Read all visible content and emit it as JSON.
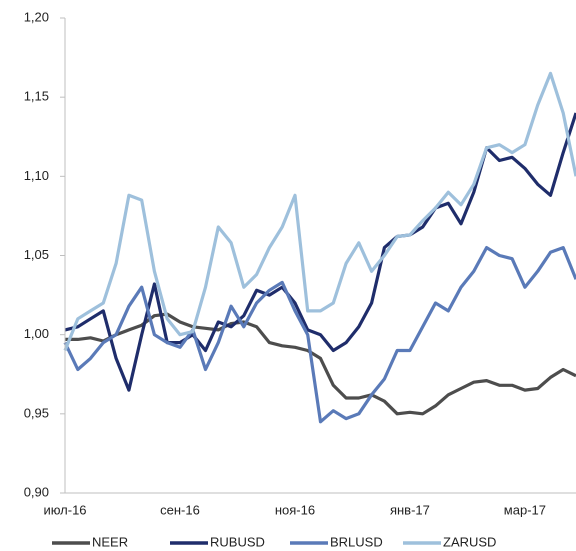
{
  "chart_data": {
    "type": "line",
    "categories": [
      "июл-16",
      null,
      null,
      null,
      null,
      null,
      null,
      null,
      null,
      "сен-16",
      null,
      null,
      null,
      null,
      null,
      null,
      null,
      null,
      "ноя-16",
      null,
      null,
      null,
      null,
      null,
      null,
      null,
      null,
      "янв-17",
      null,
      null,
      null,
      null,
      null,
      null,
      null,
      null,
      "мар-17",
      null,
      null,
      null,
      null
    ],
    "series": [
      {
        "name": "NEER",
        "color": "#4d4d4d",
        "values": [
          0.997,
          0.997,
          0.998,
          0.996,
          1.0,
          1.003,
          1.006,
          1.012,
          1.013,
          1.008,
          1.005,
          1.004,
          1.003,
          1.007,
          1.008,
          1.005,
          0.995,
          0.993,
          0.992,
          0.99,
          0.985,
          0.968,
          0.96,
          0.96,
          0.962,
          0.958,
          0.95,
          0.951,
          0.95,
          0.955,
          0.962,
          0.966,
          0.97,
          0.971,
          0.968,
          0.968,
          0.965,
          0.966,
          0.973,
          0.978,
          0.974
        ]
      },
      {
        "name": "RUBUSD",
        "color": "#1f2d6b",
        "values": [
          1.003,
          1.005,
          1.01,
          1.015,
          0.985,
          0.965,
          1.0,
          1.032,
          0.995,
          0.995,
          1.0,
          0.99,
          1.008,
          1.005,
          1.012,
          1.028,
          1.025,
          1.03,
          1.02,
          1.003,
          1.0,
          0.99,
          0.995,
          1.005,
          1.02,
          1.055,
          1.062,
          1.063,
          1.068,
          1.08,
          1.083,
          1.07,
          1.09,
          1.118,
          1.11,
          1.112,
          1.105,
          1.095,
          1.088,
          1.115,
          1.14
        ]
      },
      {
        "name": "BRLUSD",
        "color": "#5a7ab8",
        "values": [
          0.995,
          0.978,
          0.985,
          0.995,
          1.0,
          1.018,
          1.03,
          1.0,
          0.995,
          0.992,
          1.003,
          0.978,
          0.995,
          1.018,
          1.005,
          1.02,
          1.028,
          1.033,
          1.015,
          1.0,
          0.945,
          0.952,
          0.947,
          0.95,
          0.962,
          0.972,
          0.99,
          0.99,
          1.005,
          1.02,
          1.015,
          1.03,
          1.04,
          1.055,
          1.05,
          1.048,
          1.03,
          1.04,
          1.052,
          1.055,
          1.035
        ]
      },
      {
        "name": "ZARUSD",
        "color": "#9ec0dc",
        "values": [
          0.99,
          1.01,
          1.015,
          1.02,
          1.045,
          1.088,
          1.085,
          1.04,
          1.01,
          1.0,
          1.002,
          1.03,
          1.068,
          1.058,
          1.03,
          1.038,
          1.055,
          1.068,
          1.088,
          1.015,
          1.015,
          1.02,
          1.045,
          1.058,
          1.04,
          1.05,
          1.062,
          1.063,
          1.072,
          1.08,
          1.09,
          1.082,
          1.095,
          1.118,
          1.12,
          1.115,
          1.12,
          1.145,
          1.165,
          1.14,
          1.1
        ]
      }
    ],
    "ylim": [
      0.9,
      1.2
    ],
    "yticks": [
      {
        "value": 0.9,
        "label": "0,90"
      },
      {
        "value": 0.95,
        "label": "0,95"
      },
      {
        "value": 1.0,
        "label": "1,00"
      },
      {
        "value": 1.05,
        "label": "1,05"
      },
      {
        "value": 1.1,
        "label": "1,10"
      },
      {
        "value": 1.15,
        "label": "1,15"
      },
      {
        "value": 1.2,
        "label": "1,20"
      }
    ],
    "legend": "bottom"
  }
}
